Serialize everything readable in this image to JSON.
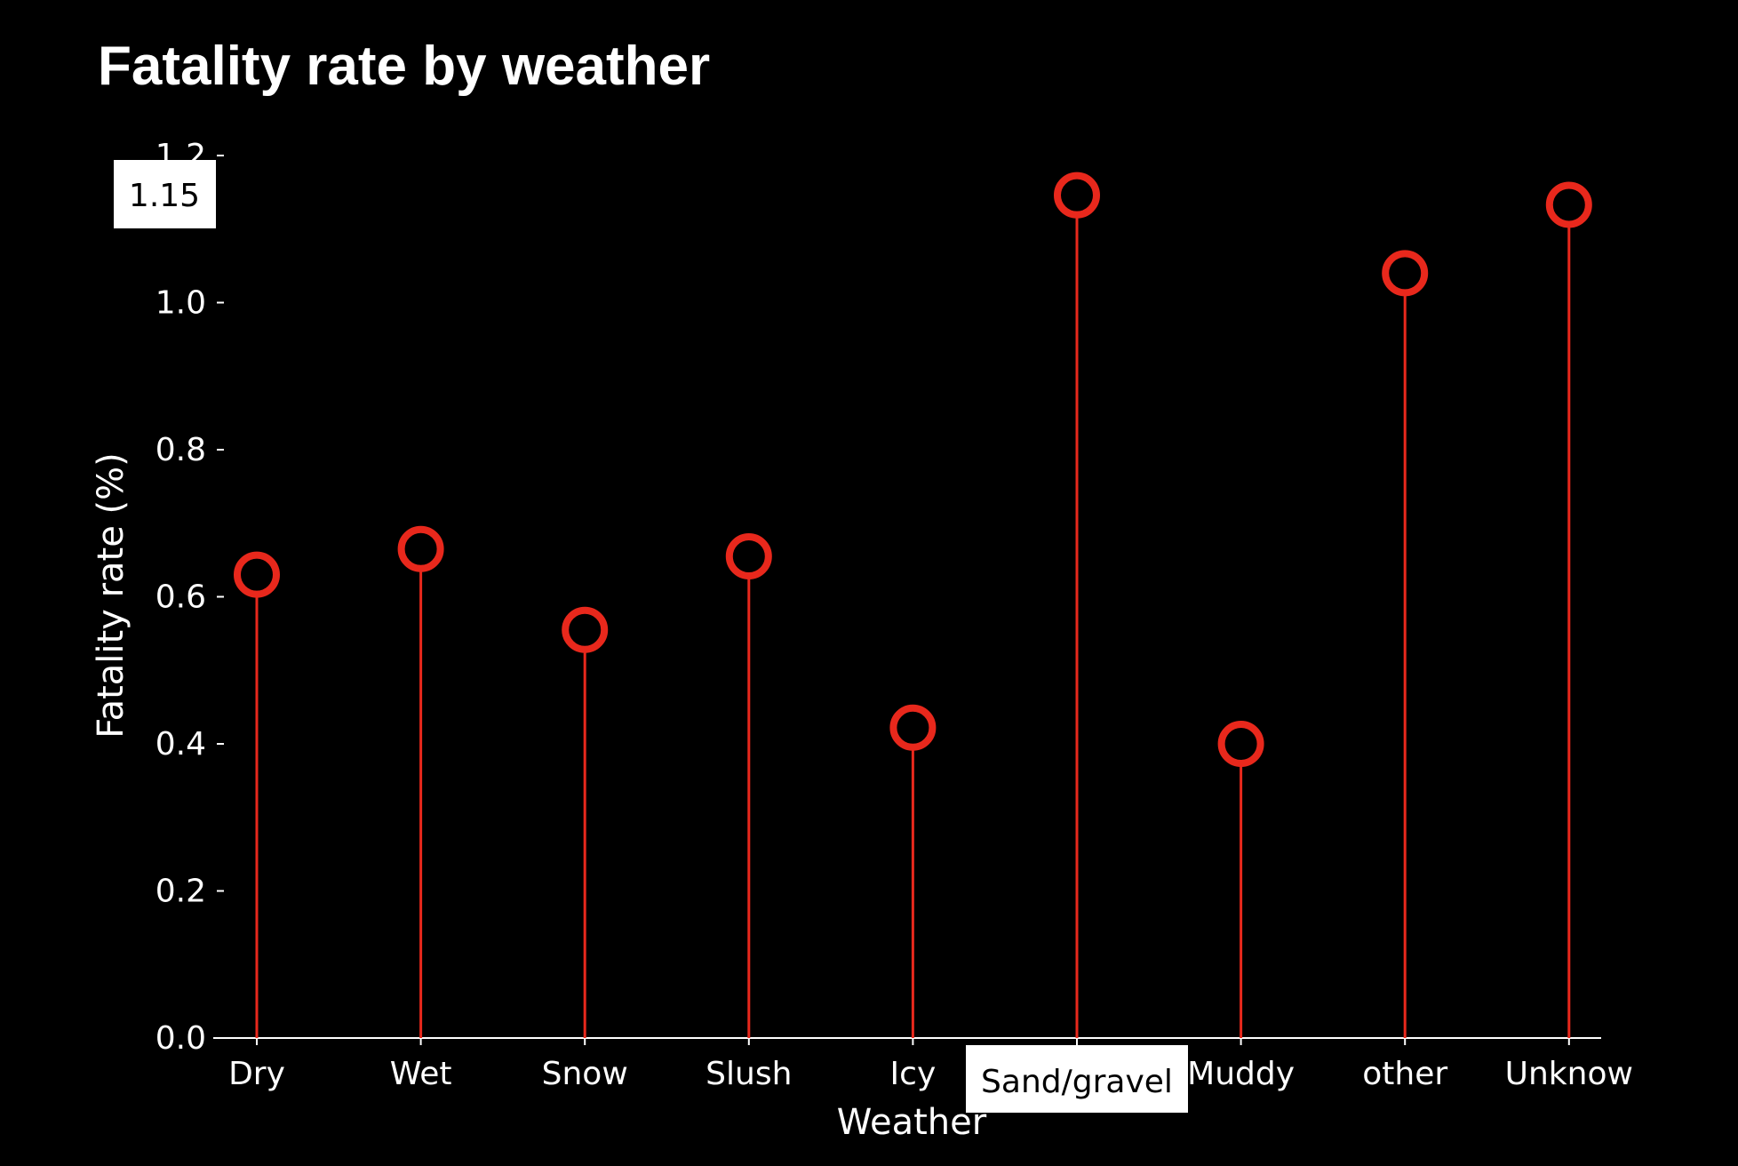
{
  "chart_data": {
    "type": "lollipop",
    "title": "Fatality rate by weather",
    "xlabel": "Weather",
    "ylabel": "Fatality rate (%)",
    "categories": [
      "Dry",
      "Wet",
      "Snow",
      "Slush",
      "Icy",
      "Sand/gravel",
      "Muddy",
      "other",
      "Unknow"
    ],
    "values": [
      0.63,
      0.665,
      0.555,
      0.655,
      0.422,
      1.146,
      0.4,
      1.04,
      1.133
    ],
    "ylim": [
      0,
      1.2
    ],
    "yticks": [
      "0.0",
      "0.2",
      "0.4",
      "0.6",
      "0.8",
      "1.0",
      "1.2"
    ],
    "grid": false,
    "colors": {
      "background": "#000000",
      "marker": "#e8281c",
      "stem": "#e8281c",
      "axis": "#ffffff",
      "text": "#ffffff"
    },
    "tooltips": {
      "value": "1.15",
      "category": "Sand/gravel"
    }
  }
}
